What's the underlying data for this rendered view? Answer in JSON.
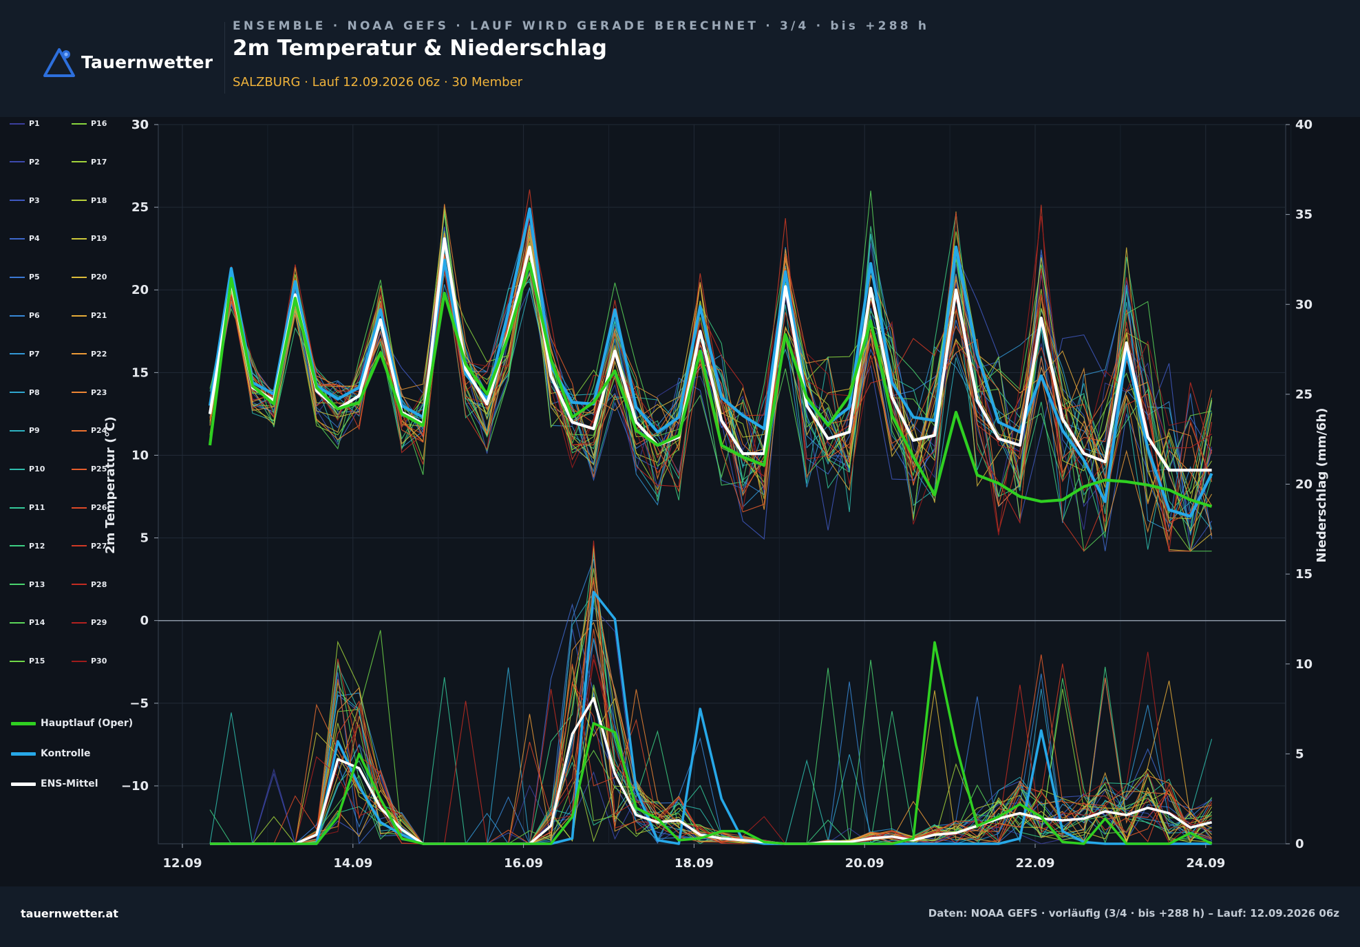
{
  "brand": {
    "name": "Tauernwetter",
    "accent": "#2d6fdc"
  },
  "header": {
    "supertitle": "ENSEMBLE · NOAA GEFS · LAUF WIRD GERADE BERECHNET · 3/4 · bis +288 h",
    "title": "2m Temperatur & Niederschlag",
    "subtitle": "SALZBURG · Lauf 12.09.2026 06z · 30 Member"
  },
  "footer": {
    "site": "tauernwetter.at",
    "source": "Daten: NOAA GEFS · vorläufig (3/4 · bis +288 h) – Lauf: 12.09.2026 06z"
  },
  "colors": {
    "oper": "#2fd021",
    "control": "#27a8e8",
    "mean": "#ffffff",
    "members": [
      "#3b3f9e",
      "#3d4aaf",
      "#3f58c0",
      "#3e68cc",
      "#3b78d4",
      "#3788d7",
      "#3398d6",
      "#2fa6cf",
      "#2eb3c2",
      "#2fbfaf",
      "#34c99a",
      "#3dd084",
      "#4ad46e",
      "#5bd659",
      "#70d748",
      "#89d63e",
      "#a2d43b",
      "#b8d03a",
      "#cdc83a",
      "#dcbc3a",
      "#e6ac39",
      "#ec9a37",
      "#ee8634",
      "#ec7130",
      "#e75d2c",
      "#de4a28",
      "#d23a25",
      "#c42c22",
      "#b32220",
      "#9e1c1c"
    ]
  },
  "legend": {
    "members": [
      "P1",
      "P2",
      "P3",
      "P4",
      "P5",
      "P6",
      "P7",
      "P8",
      "P9",
      "P10",
      "P11",
      "P12",
      "P13",
      "P14",
      "P15",
      "P16",
      "P17",
      "P18",
      "P19",
      "P20",
      "P21",
      "P22",
      "P23",
      "P24",
      "P25",
      "P26",
      "P27",
      "P28",
      "P29",
      "P30"
    ],
    "oper": "Hauptlauf (Oper)",
    "control": "Kontrolle",
    "mean": "ENS-Mittel"
  },
  "chart_data": {
    "type": "line",
    "ylabel": "2m Temperatur (°C)",
    "y2label": "Niederschlag (mm/6h)",
    "x_ticks": [
      "12.09",
      "14.09",
      "16.09",
      "18.09",
      "20.09",
      "22.09",
      "24.09"
    ],
    "y_ticks": [
      -10,
      -5,
      0,
      5,
      10,
      15,
      20,
      25,
      30
    ],
    "y2_ticks": [
      0,
      5,
      10,
      15,
      20,
      25,
      30,
      35,
      40
    ],
    "ylim": [
      -13.5,
      30
    ],
    "y2lim": [
      0,
      40
    ],
    "x": [
      "12.09 12z",
      "12.09 18z",
      "13.09 00z",
      "13.09 06z",
      "13.09 12z",
      "13.09 18z",
      "14.09 00z",
      "14.09 06z",
      "14.09 12z",
      "14.09 18z",
      "15.09 00z",
      "15.09 06z",
      "15.09 12z",
      "15.09 18z",
      "16.09 00z",
      "16.09 06z",
      "16.09 12z",
      "16.09 18z",
      "17.09 00z",
      "17.09 06z",
      "17.09 12z",
      "17.09 18z",
      "18.09 00z",
      "18.09 06z",
      "18.09 12z",
      "18.09 18z",
      "19.09 00z",
      "19.09 06z",
      "19.09 12z",
      "19.09 18z",
      "20.09 00z",
      "20.09 06z",
      "20.09 12z",
      "20.09 18z",
      "21.09 00z",
      "21.09 06z",
      "21.09 12z",
      "21.09 18z",
      "22.09 00z",
      "22.09 06z",
      "22.09 12z",
      "22.09 18z",
      "23.09 00z",
      "23.09 06z",
      "23.09 12z",
      "23.09 18z",
      "24.09 00z",
      "24.09 06z"
    ],
    "series": [
      {
        "name": "Hauptlauf (Oper)",
        "axis": "left",
        "values": [
          10.6,
          20.7,
          14.2,
          13.1,
          19.5,
          14.1,
          12.8,
          13.2,
          16.2,
          12.5,
          11.8,
          19.8,
          15.5,
          13.7,
          17.2,
          21.6,
          15.8,
          12.3,
          13.2,
          15.1,
          11.5,
          10.6,
          11.2,
          16.3,
          10.6,
          9.9,
          9.4,
          17.3,
          13.5,
          11.8,
          13.6,
          18.1,
          12.4,
          9.9,
          7.6,
          12.6,
          8.8,
          8.3,
          7.5,
          7.2,
          7.3,
          8.1,
          8.5,
          8.4,
          8.2,
          7.9,
          7.3,
          6.9
        ]
      },
      {
        "name": "Kontrolle",
        "axis": "left",
        "values": [
          13.0,
          21.3,
          14.4,
          13.7,
          20.5,
          14.2,
          13.4,
          14.1,
          18.8,
          13.0,
          12.3,
          21.8,
          14.9,
          13.4,
          18.7,
          24.9,
          15.4,
          13.2,
          13.1,
          18.8,
          12.9,
          11.4,
          12.3,
          19.0,
          13.5,
          12.4,
          11.6,
          21.1,
          13.3,
          11.9,
          12.9,
          21.6,
          14.4,
          12.3,
          12.1,
          22.6,
          16.1,
          12.0,
          11.4,
          14.8,
          11.5,
          9.7,
          7.2,
          16.3,
          10.4,
          6.7,
          6.3,
          8.9
        ]
      },
      {
        "name": "ENS-Mittel",
        "axis": "left",
        "values": [
          12.5,
          20.5,
          14.1,
          13.3,
          19.7,
          13.9,
          12.8,
          13.6,
          18.2,
          12.6,
          11.9,
          23.1,
          15.2,
          13.1,
          17.4,
          22.6,
          14.8,
          12.0,
          11.6,
          16.3,
          12.0,
          10.6,
          11.1,
          17.5,
          12.1,
          10.1,
          10.1,
          20.2,
          13.0,
          11.0,
          11.4,
          20.1,
          13.5,
          10.9,
          11.2,
          20.0,
          13.3,
          11.0,
          10.6,
          18.3,
          12.2,
          10.1,
          9.6,
          16.8,
          11.1,
          9.1,
          9.1,
          9.1
        ]
      },
      {
        "name": "Hauptlauf (Oper)",
        "axis": "right",
        "values": [
          0,
          0,
          0,
          0,
          0,
          0,
          1.5,
          5.0,
          2.5,
          0.3,
          0,
          0,
          0,
          0,
          0,
          0,
          0,
          1.5,
          6.7,
          6.2,
          2.0,
          1.4,
          0.2,
          0.3,
          0.7,
          0.7,
          0.1,
          0,
          0,
          0,
          0,
          0,
          0,
          0.3,
          11.2,
          5.5,
          1.0,
          1.5,
          2.2,
          1.5,
          0.1,
          0,
          1.4,
          0,
          0,
          0,
          0.6,
          0
        ]
      },
      {
        "name": "Kontrolle",
        "axis": "right",
        "values": [
          0,
          0,
          0,
          0,
          0,
          0,
          5.7,
          3.2,
          1.2,
          0.5,
          0,
          0,
          0,
          0,
          0,
          0,
          0,
          0.3,
          14.0,
          12.5,
          3.0,
          0.2,
          0,
          7.5,
          2.5,
          0.2,
          0,
          0,
          0,
          0,
          0,
          0,
          0,
          0,
          0,
          0,
          0,
          0,
          0.3,
          6.3,
          0.7,
          0.1,
          0,
          0,
          0,
          0,
          0,
          0
        ]
      },
      {
        "name": "ENS-Mittel",
        "axis": "right",
        "values": [
          0,
          0,
          0,
          0,
          0,
          0.5,
          4.7,
          4.2,
          2.0,
          0.8,
          0,
          0,
          0,
          0,
          0,
          0,
          1.0,
          6.1,
          8.1,
          3.9,
          1.6,
          1.2,
          1.3,
          0.5,
          0.3,
          0.2,
          0.1,
          0,
          0,
          0.1,
          0.1,
          0.3,
          0.4,
          0.2,
          0.5,
          0.6,
          1.0,
          1.4,
          1.7,
          1.4,
          1.3,
          1.4,
          1.8,
          1.6,
          2.0,
          1.7,
          0.9,
          1.2
        ]
      }
    ],
    "members_note_ranges": {
      "temp_spread_min": 4.1,
      "temp_spread_max": 28.1,
      "precip_max": 18.9
    },
    "legend": "left",
    "grid": true
  }
}
